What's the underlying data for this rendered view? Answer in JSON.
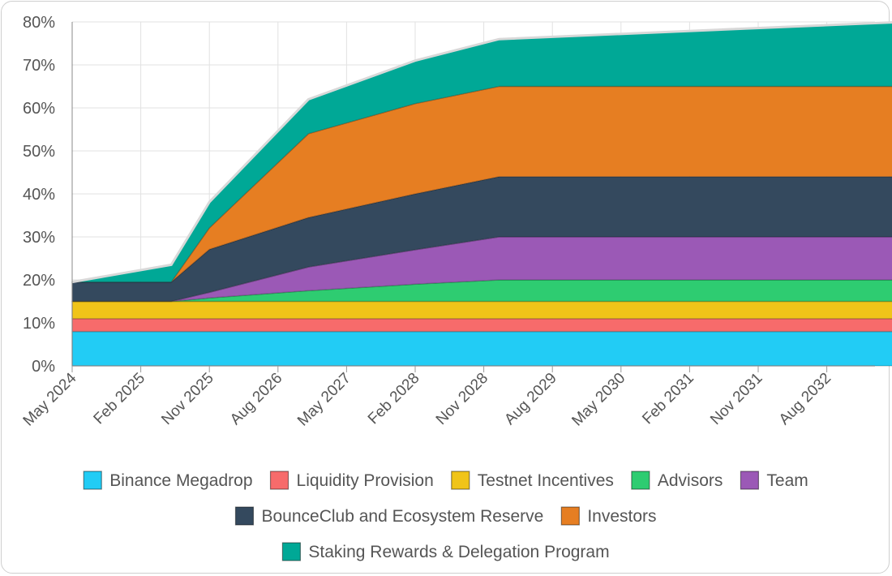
{
  "chart_data": {
    "type": "area",
    "stacked": true,
    "title": "",
    "xlabel": "",
    "ylabel": "",
    "ylim": [
      0,
      80
    ],
    "y_ticks": [
      "0%",
      "10%",
      "20%",
      "30%",
      "40%",
      "50%",
      "60%",
      "70%",
      "80%"
    ],
    "x_ticks": [
      "May 2024",
      "Feb 2025",
      "Nov 2025",
      "Aug 2026",
      "May 2027",
      "Feb 2028",
      "Nov 2028",
      "Aug 2029",
      "May 2030",
      "Feb 2031",
      "Nov 2031",
      "Aug 2032"
    ],
    "x": [
      "May 2024",
      "Jun 2025",
      "Nov 2025",
      "Dec 2026",
      "Feb 2028",
      "Jan 2029",
      "Jun 2033"
    ],
    "grid": true,
    "legend_position": "bottom",
    "series": [
      {
        "name": "Binance Megadrop",
        "color": "#22ccf5",
        "values": [
          8,
          8,
          8,
          8,
          8,
          8,
          8
        ]
      },
      {
        "name": "Liquidity Provision",
        "color": "#f76b6b",
        "values": [
          3,
          3,
          3,
          3,
          3,
          3,
          3
        ]
      },
      {
        "name": "Testnet Incentives",
        "color": "#f0c419",
        "values": [
          4,
          4,
          4,
          4,
          4,
          4,
          4
        ]
      },
      {
        "name": "Advisors",
        "color": "#2ecc71",
        "values": [
          0,
          0,
          0.8,
          2.5,
          4,
          5,
          5
        ]
      },
      {
        "name": "Team",
        "color": "#9b59b6",
        "values": [
          0,
          0,
          1.3,
          5.5,
          8,
          10,
          10
        ]
      },
      {
        "name": "BounceClub and Ecosystem Reserve",
        "color": "#34495e",
        "values": [
          4.5,
          4.5,
          10,
          11.5,
          13,
          14,
          14
        ]
      },
      {
        "name": "Investors",
        "color": "#e67e22",
        "values": [
          0,
          0,
          5,
          19.5,
          21,
          21,
          21
        ]
      },
      {
        "name": "Staking Rewards & Delegation Program",
        "color": "#00a896",
        "values": [
          0,
          4,
          6,
          8,
          10,
          11,
          15
        ]
      }
    ]
  }
}
